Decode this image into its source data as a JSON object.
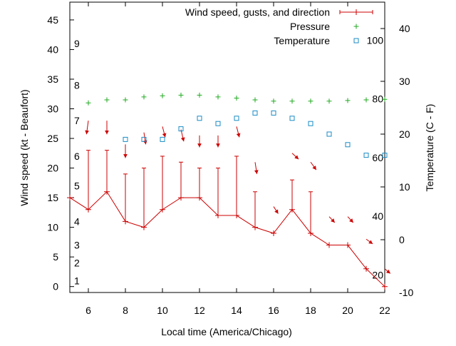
{
  "chart_data": {
    "type": "line",
    "title": "",
    "xlabel": "Local time (America/Chicago)",
    "ylabel_left": "Wind speed (kt - Beaufort)",
    "ylabel_right": "Temperature (C - F)",
    "xlim": [
      5,
      22
    ],
    "ylim_left": [
      -1,
      48
    ],
    "ylim_right": [
      -10,
      45
    ],
    "x_ticks": [
      6,
      8,
      10,
      12,
      14,
      16,
      18,
      20,
      22
    ],
    "y_ticks_left": [
      0,
      5,
      10,
      15,
      20,
      25,
      30,
      35,
      40,
      45
    ],
    "y_ticks_right": [
      -10,
      0,
      10,
      20,
      30,
      40
    ],
    "beaufort_labels": [
      {
        "label": "1",
        "value": 1
      },
      {
        "label": "2",
        "value": 4
      },
      {
        "label": "3",
        "value": 7
      },
      {
        "label": "4",
        "value": 11
      },
      {
        "label": "5",
        "value": 17
      },
      {
        "label": "6",
        "value": 22
      },
      {
        "label": "7",
        "value": 28
      },
      {
        "label": "8",
        "value": 34
      },
      {
        "label": "9",
        "value": 41
      }
    ],
    "fahrenheit_labels": [
      {
        "label": "20",
        "value": -6.67
      },
      {
        "label": "40",
        "value": 4.44
      },
      {
        "label": "60",
        "value": 15.56
      },
      {
        "label": "80",
        "value": 26.67
      },
      {
        "label": "100",
        "value": 37.78
      }
    ],
    "legend": [
      {
        "name": "Wind speed, gusts, and direction",
        "color": "#cc0000",
        "marker": "errorbar"
      },
      {
        "name": "Pressure",
        "color": "#22aa22",
        "marker": "plus"
      },
      {
        "name": "Temperature",
        "color": "#1a8bc4",
        "marker": "square"
      }
    ],
    "series": [
      {
        "name": "Wind speed, gusts, and direction",
        "color": "#cc0000",
        "x": [
          5,
          6,
          7,
          8,
          9,
          10,
          11,
          12,
          13,
          14,
          15,
          16,
          17,
          18,
          19,
          20,
          21,
          22
        ],
        "values": [
          15,
          13,
          16,
          11,
          10,
          13,
          15,
          15,
          12,
          12,
          10,
          9,
          13,
          9,
          7,
          7,
          3,
          0
        ],
        "gusts": [
          null,
          23,
          23,
          19,
          20,
          22,
          21,
          20,
          20,
          22,
          16,
          null,
          18,
          16,
          null,
          null,
          null,
          null
        ]
      },
      {
        "name": "Pressure",
        "color": "#22aa22",
        "x": [
          6,
          7,
          8,
          9,
          10,
          11,
          12,
          13,
          14,
          15,
          16,
          17,
          18,
          19,
          20,
          21,
          22
        ],
        "values": [
          31,
          31.5,
          31.5,
          32,
          32.2,
          32.3,
          32.3,
          32,
          31.8,
          31.5,
          31.3,
          31.3,
          31.3,
          31.3,
          31.4,
          31.5,
          31.6
        ]
      },
      {
        "name": "Temperature",
        "color": "#1a8bc4",
        "axis": "right",
        "x": [
          8,
          9,
          10,
          11,
          12,
          13,
          14,
          15,
          16,
          17,
          18,
          19,
          20,
          21,
          22
        ],
        "values": [
          19,
          19,
          19,
          21,
          23,
          22,
          23,
          24,
          24,
          23,
          22,
          20,
          18,
          16,
          16
        ]
      }
    ],
    "wind_direction_arrows": [
      {
        "x": 6,
        "y": 28,
        "dx": -0.1,
        "dy": -2.3
      },
      {
        "x": 7,
        "y": 28,
        "dx": 0,
        "dy": -2.3
      },
      {
        "x": 8,
        "y": 24,
        "dx": 0,
        "dy": -2.3
      },
      {
        "x": 9,
        "y": 26,
        "dx": 0.1,
        "dy": -2
      },
      {
        "x": 10,
        "y": 27,
        "dx": 0.15,
        "dy": -1.8
      },
      {
        "x": 11,
        "y": 26.5,
        "dx": 0.15,
        "dy": -2
      },
      {
        "x": 12,
        "y": 25.5,
        "dx": 0,
        "dy": -2
      },
      {
        "x": 13,
        "y": 25.5,
        "dx": 0,
        "dy": -2
      },
      {
        "x": 14,
        "y": 27,
        "dx": 0.15,
        "dy": -1.8
      },
      {
        "x": 15,
        "y": 21,
        "dx": 0.1,
        "dy": -2
      },
      {
        "x": 16,
        "y": 13.5,
        "dx": 0.25,
        "dy": -1.2
      },
      {
        "x": 17,
        "y": 22.5,
        "dx": 0.35,
        "dy": -1
      },
      {
        "x": 18,
        "y": 21,
        "dx": 0.3,
        "dy": -1.3
      },
      {
        "x": 19,
        "y": 11.8,
        "dx": 0.3,
        "dy": -1
      },
      {
        "x": 20,
        "y": 11.8,
        "dx": 0.3,
        "dy": -1
      },
      {
        "x": 21,
        "y": 8,
        "dx": 0.35,
        "dy": -0.8
      },
      {
        "x": 22,
        "y": 3,
        "dx": 0.3,
        "dy": -0.8
      }
    ]
  }
}
